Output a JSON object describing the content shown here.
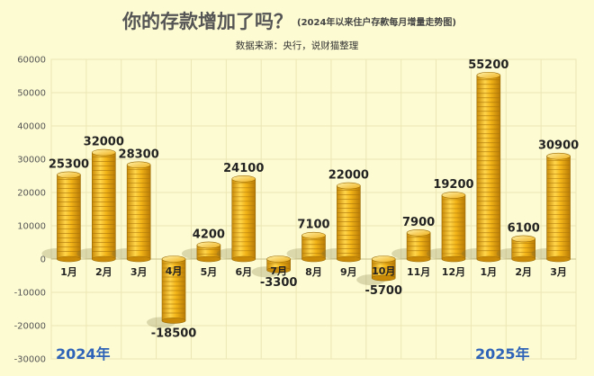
{
  "title": "你的存款增加了吗？",
  "subtitle": "(2024年以来住户存款每月增量走势图)",
  "source": "数据来源：央行，说财猫整理",
  "year_labels": [
    "2024年",
    "2025年"
  ],
  "colors": {
    "background": "#fdfbd2",
    "coin_main": "#f2b417",
    "coin_dark": "#c98a08",
    "coin_light": "#ffe27a",
    "year_label": "#2e63b8"
  },
  "chart_data": {
    "type": "bar",
    "title": "你的存款增加了吗？",
    "subtitle": "(2024年以来住户存款每月增量走势图)",
    "xlabel": "",
    "ylabel": "",
    "ylim": [
      -30000,
      60000
    ],
    "yticks": [
      60000,
      50000,
      40000,
      30000,
      20000,
      10000,
      0,
      -10000,
      -20000,
      -30000
    ],
    "grid": true,
    "legend": "none",
    "categories": [
      "1月",
      "2月",
      "3月",
      "4月",
      "5月",
      "6月",
      "7月",
      "8月",
      "9月",
      "10月",
      "11月",
      "12月",
      "1月",
      "2月",
      "3月"
    ],
    "values": [
      25300,
      32000,
      28300,
      -18500,
      4200,
      24100,
      -3300,
      7100,
      22000,
      -5700,
      7900,
      19200,
      55200,
      6100,
      30900
    ]
  }
}
